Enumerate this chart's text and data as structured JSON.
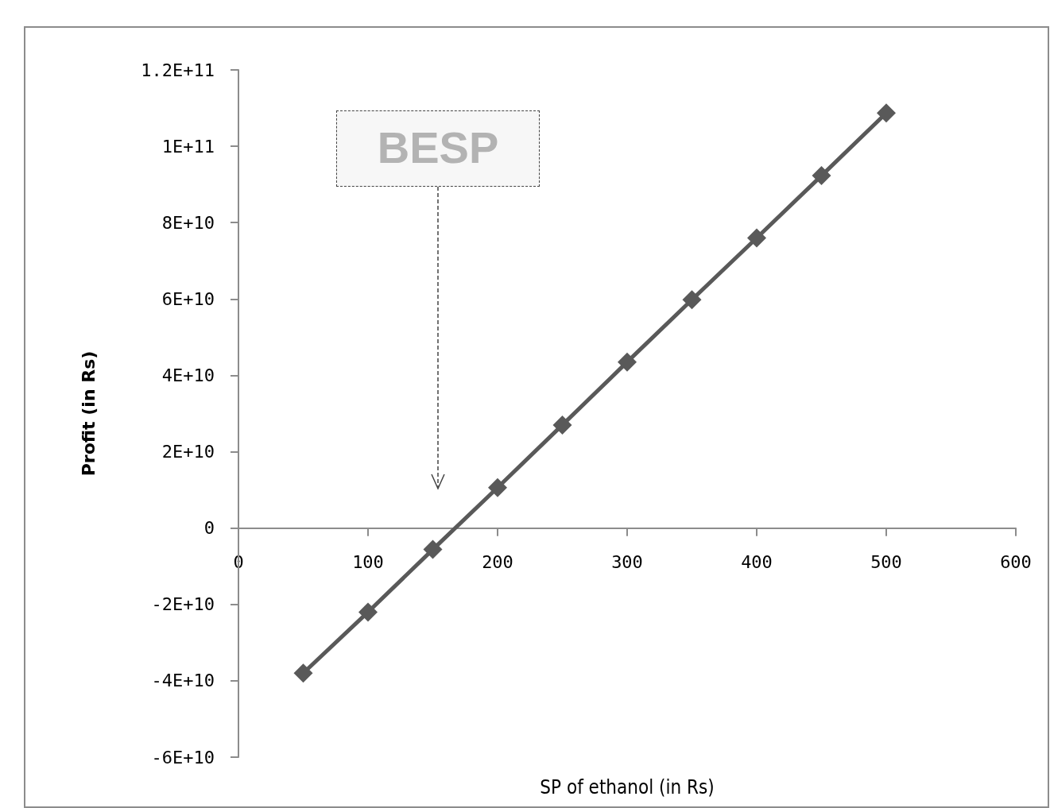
{
  "chart_data": {
    "type": "line",
    "xlabel": "SP of ethanol (in Rs)",
    "ylabel": "Profit (in Rs)",
    "x": [
      50,
      100,
      150,
      200,
      250,
      300,
      350,
      400,
      450,
      500
    ],
    "series": [
      {
        "color": "#595959",
        "values": [
          -38000000000,
          -22000000000,
          -5600000000,
          10600000000,
          27000000000,
          43500000000,
          59800000000,
          76000000000,
          92300000000,
          108700000000
        ]
      }
    ],
    "xlim": [
      0,
      600
    ],
    "xticks": [
      0,
      100,
      200,
      300,
      400,
      500,
      600
    ],
    "ylim": [
      -60000000000,
      120000000000
    ],
    "yticks": [
      {
        "value": -60000000000,
        "label": "-6E+10"
      },
      {
        "value": -40000000000,
        "label": "-4E+10"
      },
      {
        "value": -20000000000,
        "label": "-2E+10"
      },
      {
        "value": 0,
        "label": "0"
      },
      {
        "value": 20000000000,
        "label": "2E+10"
      },
      {
        "value": 40000000000,
        "label": "4E+10"
      },
      {
        "value": 60000000000,
        "label": "6E+10"
      },
      {
        "value": 80000000000,
        "label": "8E+10"
      },
      {
        "value": 100000000000,
        "label": "1E+11"
      },
      {
        "value": 120000000000,
        "label": "1.2E+11"
      }
    ],
    "annotations": [
      "BESP"
    ],
    "marker": "diamond",
    "line_style": "solid"
  }
}
